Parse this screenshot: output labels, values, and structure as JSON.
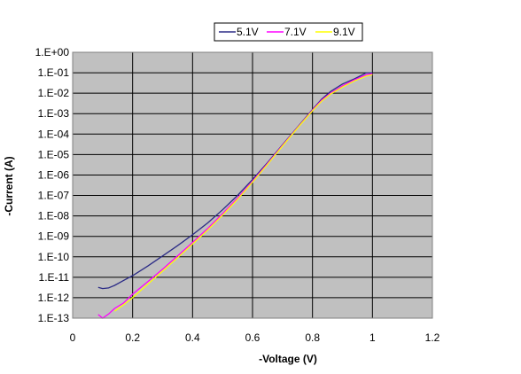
{
  "chart_data": {
    "type": "line",
    "title": "",
    "xlabel": "-Voltage (V)",
    "ylabel": "-Current (A)",
    "xlim": [
      0,
      1.2
    ],
    "ylim": [
      1e-13,
      1
    ],
    "y_scale": "log",
    "grid": true,
    "plot_background": "#c0c0c0",
    "legend_position": "top",
    "x_ticks": [
      0,
      0.2,
      0.4,
      0.6,
      0.8,
      1,
      1.2
    ],
    "x_tick_labels": [
      "0",
      "0.2",
      "0.4",
      "0.6",
      "0.8",
      "1",
      "1.2"
    ],
    "y_ticks": [
      1e-13,
      1e-12,
      1e-11,
      1e-10,
      1e-09,
      1e-08,
      1e-07,
      1e-06,
      1e-05,
      0.0001,
      0.001,
      0.01,
      0.1,
      1
    ],
    "y_tick_labels": [
      "1.E-13",
      "1.E-12",
      "1.E-11",
      "1.E-10",
      "1.E-09",
      "1.E-08",
      "1.E-07",
      "1.E-06",
      "1.E-05",
      "1.E-04",
      "1.E-03",
      "1.E-02",
      "1.E-01",
      "1.E+00"
    ],
    "series": [
      {
        "name": "5.1V",
        "color": "#2b2b86",
        "points": [
          [
            0.085,
            3.2e-12
          ],
          [
            0.1,
            2.8e-12
          ],
          [
            0.12,
            3e-12
          ],
          [
            0.14,
            4e-12
          ],
          [
            0.17,
            7e-12
          ],
          [
            0.2,
            1.2e-11
          ],
          [
            0.25,
            3.5e-11
          ],
          [
            0.3,
            1.1e-10
          ],
          [
            0.35,
            3.5e-10
          ],
          [
            0.4,
            1.2e-09
          ],
          [
            0.45,
            4.5e-09
          ],
          [
            0.5,
            2e-08
          ],
          [
            0.55,
            1e-07
          ],
          [
            0.6,
            6e-07
          ],
          [
            0.65,
            4e-06
          ],
          [
            0.7,
            3e-05
          ],
          [
            0.75,
            0.00022
          ],
          [
            0.8,
            0.0016
          ],
          [
            0.83,
            0.005
          ],
          [
            0.86,
            0.012
          ],
          [
            0.9,
            0.028
          ],
          [
            0.94,
            0.05
          ],
          [
            0.98,
            0.1
          ],
          [
            1.0,
            0.1
          ]
        ]
      },
      {
        "name": "7.1V",
        "color": "#ff00ff",
        "points": [
          [
            0.085,
            1.5e-13
          ],
          [
            0.1,
            1e-13
          ],
          [
            0.12,
            1.6e-13
          ],
          [
            0.14,
            3e-13
          ],
          [
            0.17,
            5.5e-13
          ],
          [
            0.2,
            1.5e-12
          ],
          [
            0.25,
            6e-12
          ],
          [
            0.3,
            2.5e-11
          ],
          [
            0.35,
            1.1e-10
          ],
          [
            0.4,
            5e-10
          ],
          [
            0.45,
            2.4e-09
          ],
          [
            0.5,
            1.3e-08
          ],
          [
            0.55,
            7.5e-08
          ],
          [
            0.6,
            5e-07
          ],
          [
            0.65,
            3.6e-06
          ],
          [
            0.7,
            2.8e-05
          ],
          [
            0.75,
            0.00021
          ],
          [
            0.8,
            0.0015
          ],
          [
            0.83,
            0.0045
          ],
          [
            0.86,
            0.01
          ],
          [
            0.9,
            0.023
          ],
          [
            0.94,
            0.045
          ],
          [
            0.98,
            0.08
          ],
          [
            1.0,
            0.09
          ]
        ]
      },
      {
        "name": "9.1V",
        "color": "#ffff00",
        "points": [
          [
            0.14,
            2.2e-13
          ],
          [
            0.17,
            4.5e-13
          ],
          [
            0.2,
            1e-12
          ],
          [
            0.25,
            4.5e-12
          ],
          [
            0.3,
            2e-11
          ],
          [
            0.35,
            9e-11
          ],
          [
            0.4,
            4.2e-10
          ],
          [
            0.45,
            2e-09
          ],
          [
            0.5,
            1.1e-08
          ],
          [
            0.55,
            6.5e-08
          ],
          [
            0.6,
            4.5e-07
          ],
          [
            0.65,
            3.3e-06
          ],
          [
            0.7,
            2.6e-05
          ],
          [
            0.75,
            0.0002
          ],
          [
            0.8,
            0.0014
          ],
          [
            0.83,
            0.004
          ],
          [
            0.86,
            0.009
          ],
          [
            0.9,
            0.02
          ],
          [
            0.94,
            0.04
          ],
          [
            0.98,
            0.07
          ],
          [
            1.0,
            0.08
          ]
        ]
      }
    ]
  }
}
